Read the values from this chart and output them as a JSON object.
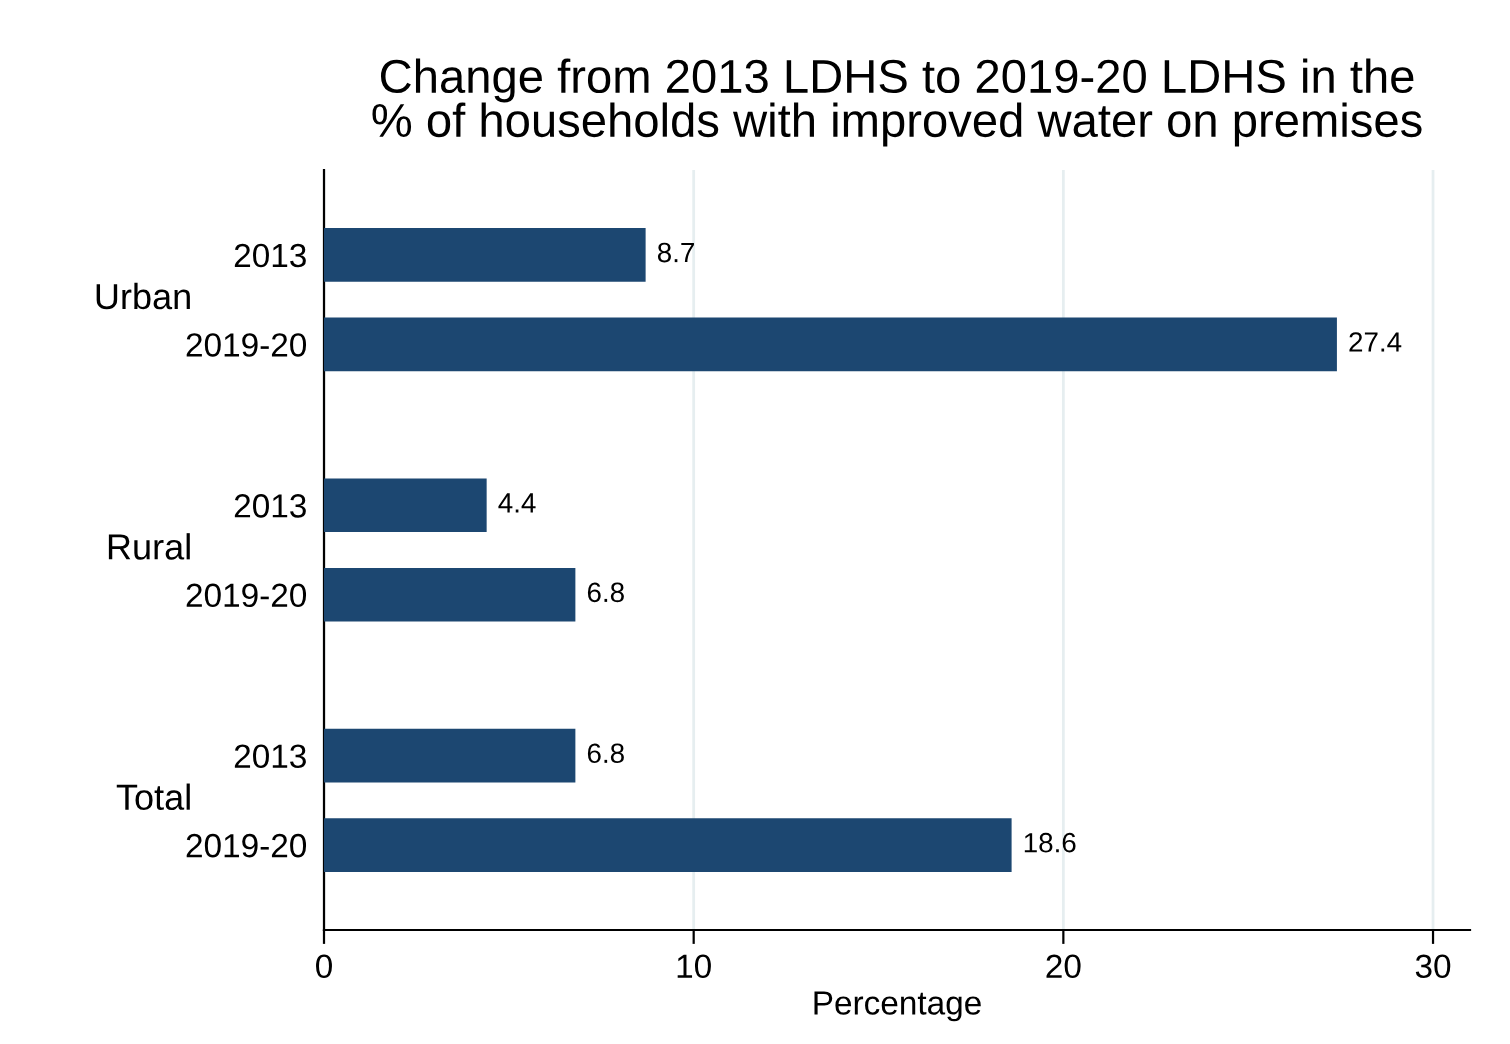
{
  "chart_data": {
    "type": "bar",
    "orientation": "horizontal",
    "title": "Change from 2013 LDHS to 2019-20 LDHS in the\n% of households with improved water on premises",
    "xlabel": "Percentage",
    "categories": [
      "2013",
      "2019-20",
      "2013",
      "2019-20",
      "2013",
      "2019-20"
    ],
    "values": [
      8.7,
      27.4,
      4.4,
      6.8,
      6.8,
      18.6
    ],
    "color": "#1c4771",
    "annotations": [
      "Urban",
      "Rural",
      "Total"
    ],
    "xlim": [
      0,
      31
    ],
    "xticks": [
      0,
      10,
      20,
      30
    ],
    "grid": "x",
    "data_labels": true
  }
}
